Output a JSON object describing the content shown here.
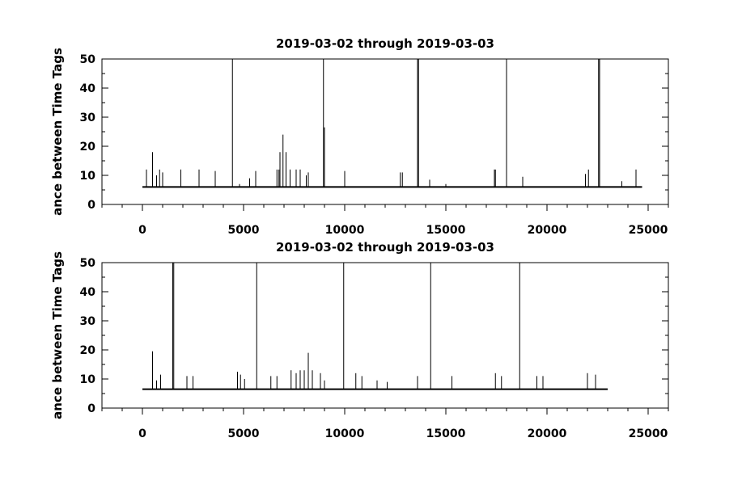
{
  "chart_data": [
    {
      "type": "line",
      "title": "2019-03-02 through 2019-03-03",
      "xlabel": "",
      "ylabel": "ance between Time Tags",
      "xlim": [
        -2000,
        26000
      ],
      "ylim": [
        0,
        50
      ],
      "xticks": [
        0,
        5000,
        10000,
        15000,
        20000,
        25000
      ],
      "xtick_labels": [
        "0",
        "5000",
        "10000",
        "15000",
        "20000",
        "25000"
      ],
      "yticks": [
        0,
        10,
        20,
        30,
        40,
        50
      ],
      "ytick_labels": [
        "0",
        "10",
        "20",
        "30",
        "40",
        "50"
      ],
      "grid": false,
      "x_range": [
        0,
        24700
      ],
      "baseline": 6,
      "spikes": [
        {
          "x": 200,
          "y": 12
        },
        {
          "x": 500,
          "y": 18
        },
        {
          "x": 700,
          "y": 10
        },
        {
          "x": 850,
          "y": 12
        },
        {
          "x": 1000,
          "y": 11
        },
        {
          "x": 1900,
          "y": 12
        },
        {
          "x": 2800,
          "y": 12
        },
        {
          "x": 3600,
          "y": 11.5
        },
        {
          "x": 4450,
          "y": 50
        },
        {
          "x": 4800,
          "y": 7
        },
        {
          "x": 5300,
          "y": 9
        },
        {
          "x": 5600,
          "y": 11.5
        },
        {
          "x": 6650,
          "y": 12
        },
        {
          "x": 6750,
          "y": 12
        },
        {
          "x": 6800,
          "y": 18
        },
        {
          "x": 6950,
          "y": 24
        },
        {
          "x": 7100,
          "y": 18
        },
        {
          "x": 7300,
          "y": 12
        },
        {
          "x": 7600,
          "y": 12
        },
        {
          "x": 7800,
          "y": 12
        },
        {
          "x": 8100,
          "y": 10
        },
        {
          "x": 8200,
          "y": 11
        },
        {
          "x": 8950,
          "y": 50
        },
        {
          "x": 9000,
          "y": 26.5
        },
        {
          "x": 10000,
          "y": 11.5
        },
        {
          "x": 12750,
          "y": 11
        },
        {
          "x": 12850,
          "y": 11
        },
        {
          "x": 13600,
          "y": 50
        },
        {
          "x": 13650,
          "y": 50
        },
        {
          "x": 14200,
          "y": 8.5
        },
        {
          "x": 15000,
          "y": 7
        },
        {
          "x": 17400,
          "y": 12
        },
        {
          "x": 17450,
          "y": 12
        },
        {
          "x": 18000,
          "y": 50
        },
        {
          "x": 18800,
          "y": 9.5
        },
        {
          "x": 21900,
          "y": 10.5
        },
        {
          "x": 22050,
          "y": 12
        },
        {
          "x": 22550,
          "y": 50
        },
        {
          "x": 22600,
          "y": 50
        },
        {
          "x": 23700,
          "y": 8
        },
        {
          "x": 24400,
          "y": 12
        }
      ]
    },
    {
      "type": "line",
      "title": "2019-03-02 through 2019-03-03",
      "xlabel": "",
      "ylabel": "ance between Time Tags",
      "xlim": [
        -2000,
        26000
      ],
      "ylim": [
        0,
        50
      ],
      "xticks": [
        0,
        5000,
        10000,
        15000,
        20000,
        25000
      ],
      "xtick_labels": [
        "0",
        "5000",
        "10000",
        "15000",
        "20000",
        "25000"
      ],
      "yticks": [
        0,
        10,
        20,
        30,
        40,
        50
      ],
      "ytick_labels": [
        "0",
        "10",
        "20",
        "30",
        "40",
        "50"
      ],
      "grid": false,
      "x_range": [
        0,
        23000
      ],
      "baseline": 6.5,
      "spikes": [
        {
          "x": 500,
          "y": 19.5
        },
        {
          "x": 700,
          "y": 9.5
        },
        {
          "x": 900,
          "y": 11.5
        },
        {
          "x": 1500,
          "y": 50
        },
        {
          "x": 1550,
          "y": 50
        },
        {
          "x": 2200,
          "y": 11
        },
        {
          "x": 2500,
          "y": 11
        },
        {
          "x": 4700,
          "y": 12.5
        },
        {
          "x": 4850,
          "y": 11.5
        },
        {
          "x": 5050,
          "y": 10
        },
        {
          "x": 5650,
          "y": 50
        },
        {
          "x": 6350,
          "y": 11
        },
        {
          "x": 6650,
          "y": 11
        },
        {
          "x": 7350,
          "y": 13
        },
        {
          "x": 7600,
          "y": 12
        },
        {
          "x": 7800,
          "y": 13
        },
        {
          "x": 8000,
          "y": 13
        },
        {
          "x": 8200,
          "y": 19
        },
        {
          "x": 8400,
          "y": 13
        },
        {
          "x": 8800,
          "y": 12
        },
        {
          "x": 9000,
          "y": 9.5
        },
        {
          "x": 9950,
          "y": 50
        },
        {
          "x": 10550,
          "y": 12
        },
        {
          "x": 10850,
          "y": 11
        },
        {
          "x": 11600,
          "y": 9.5
        },
        {
          "x": 12100,
          "y": 9
        },
        {
          "x": 13600,
          "y": 11
        },
        {
          "x": 14250,
          "y": 50
        },
        {
          "x": 15300,
          "y": 11
        },
        {
          "x": 17450,
          "y": 12
        },
        {
          "x": 17750,
          "y": 11
        },
        {
          "x": 18650,
          "y": 50
        },
        {
          "x": 19500,
          "y": 11
        },
        {
          "x": 19800,
          "y": 11
        },
        {
          "x": 22000,
          "y": 12
        },
        {
          "x": 22400,
          "y": 11.5
        }
      ]
    }
  ]
}
